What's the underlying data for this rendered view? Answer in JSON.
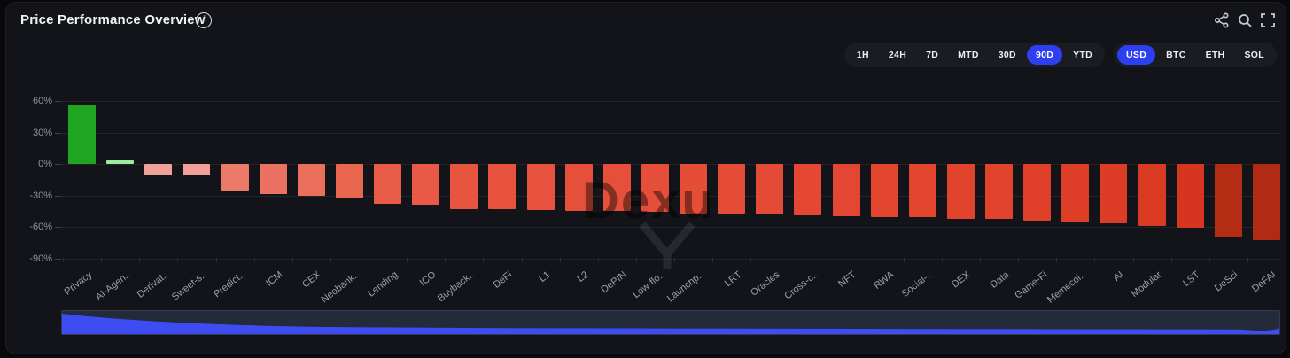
{
  "header": {
    "title": "Price Performance Overview",
    "info_icon": "i",
    "actions": [
      {
        "name": "share-icon"
      },
      {
        "name": "search-icon"
      },
      {
        "name": "fullscreen-icon"
      }
    ]
  },
  "controls": {
    "time_ranges": [
      "1H",
      "24H",
      "7D",
      "MTD",
      "30D",
      "90D",
      "YTD"
    ],
    "selected_time": "90D",
    "denominations": [
      "USD",
      "BTC",
      "ETH",
      "SOL"
    ],
    "selected_denomination": "USD",
    "accent_color": "#2e3ff2"
  },
  "chart_data": {
    "type": "bar",
    "title": "Price Performance Overview",
    "xlabel": "",
    "ylabel": "",
    "ylim": [
      -90,
      60
    ],
    "grid": true,
    "yticks": [
      60,
      30,
      0,
      -30,
      -60,
      -90
    ],
    "categories": [
      "Privacy",
      "AI-Agen..",
      "Derivat..",
      "Sweet-s..",
      "Predict..",
      "ICM",
      "CEX",
      "Neobank..",
      "Lending",
      "ICO",
      "Buyback..",
      "DeFi",
      "L1",
      "L2",
      "DePIN",
      "Low-flo..",
      "Launchp..",
      "LRT",
      "Oracles",
      "Cross-c..",
      "NFT",
      "RWA",
      "Social-..",
      "DEX",
      "Data",
      "Game-Fi",
      "Memecoi..",
      "AI",
      "Modular",
      "LST",
      "DeSci",
      "DeFAI"
    ],
    "values": [
      57,
      3,
      -11,
      -11,
      -25,
      -29,
      -30,
      -33,
      -38,
      -39,
      -43,
      -43,
      -44,
      -45,
      -45,
      -46,
      -47,
      -47,
      -48,
      -49,
      -50,
      -51,
      -51,
      -52,
      -52,
      -54,
      -56,
      -57,
      -59,
      -61,
      -70,
      -73
    ],
    "colors": [
      "#1fa51f",
      "#9fe89f",
      "#efa098",
      "#efa098",
      "#ed7a68",
      "#eb7160",
      "#eb6f5d",
      "#e9664f",
      "#e85b46",
      "#e85a45",
      "#e75440",
      "#e7533f",
      "#e6523d",
      "#e6503b",
      "#e6503b",
      "#e54e39",
      "#e54d37",
      "#e54c36",
      "#e44a34",
      "#e44832",
      "#e34731",
      "#e3452f",
      "#e3452f",
      "#e2432d",
      "#e2432d",
      "#e0402a",
      "#de3d27",
      "#dd3c26",
      "#da3922",
      "#d6351f",
      "#b52c15",
      "#b02a14"
    ],
    "positive_color": "#1fa51f",
    "negative_color_range": [
      "#efa098",
      "#b02a14"
    ],
    "legend": null
  },
  "watermark": {
    "text": "Dexu"
  },
  "minimap": {
    "fill_color": "#3e4df2",
    "track_color": "#232a3a"
  }
}
